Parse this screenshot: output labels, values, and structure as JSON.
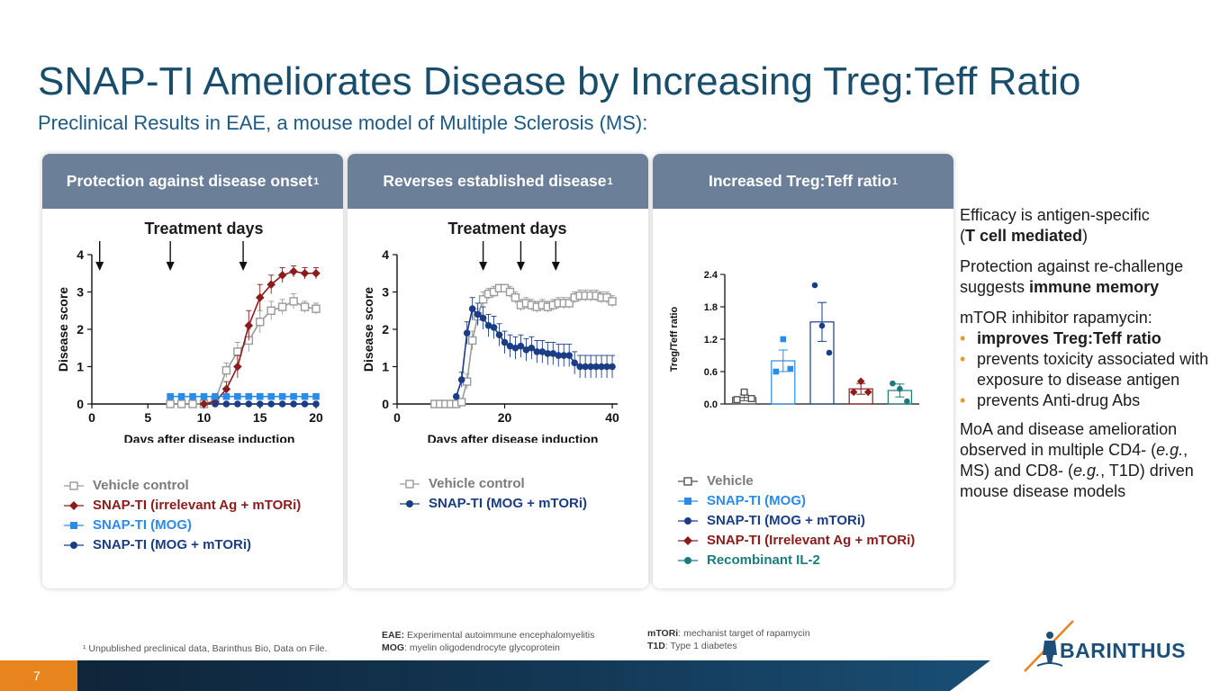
{
  "slide": {
    "title": "SNAP-TI Ameliorates Disease by Increasing Treg:Teff Ratio",
    "subtitle": "Preclinical Results in EAE, a mouse model of Multiple Sclerosis (MS):",
    "page_number": "7"
  },
  "colors": {
    "title": "#184d6b",
    "header": "#6c7f99",
    "vehicle": "#9a9a9a",
    "irrelevant": "#8b1c1c",
    "mog": "#2b8be8",
    "mog_mtori": "#1a3d85",
    "il2": "#1c7c7c",
    "accent": "#e8841e"
  },
  "panels": {
    "onset": {
      "header": "Protection against disease onset",
      "sup": "1"
    },
    "reverses": {
      "header": "Reverses established disease",
      "sup": "1"
    },
    "ratio": {
      "header": "Increased Treg:Teff ratio",
      "sup": "1"
    }
  },
  "legends": {
    "onset": [
      {
        "label": "Vehicle control",
        "marker": "square-open",
        "color": "#9a9a9a"
      },
      {
        "label": "SNAP-TI (irrelevant Ag + mTORi)",
        "marker": "diamond",
        "color": "#8b1c1c"
      },
      {
        "label": "SNAP-TI (MOG)",
        "marker": "square",
        "color": "#2b8be8"
      },
      {
        "label": "SNAP-TI (MOG + mTORi)",
        "marker": "circle",
        "color": "#1a3d85"
      }
    ],
    "reverses": [
      {
        "label": "Vehicle control",
        "marker": "square-open",
        "color": "#9a9a9a"
      },
      {
        "label": "SNAP-TI (MOG + mTORi)",
        "marker": "circle",
        "color": "#1a3d85"
      }
    ],
    "ratio": [
      {
        "label": "Vehicle",
        "marker": "square-open",
        "color": "#555555"
      },
      {
        "label": "SNAP-TI (MOG)",
        "marker": "square",
        "color": "#2b8be8"
      },
      {
        "label": "SNAP-TI (MOG + mTORi)",
        "marker": "circle",
        "color": "#1a3d85"
      },
      {
        "label": "SNAP-TI (Irrelevant Ag + mTORi)",
        "marker": "diamond",
        "color": "#8b1c1c"
      },
      {
        "label": "Recombinant IL-2",
        "marker": "circle",
        "color": "#1c7c7c"
      }
    ]
  },
  "side_text": {
    "p1a": "Efficacy is antigen-specific",
    "p1b_open": "(",
    "p1b_bold": "T cell mediated",
    "p1b_close": ")",
    "p2": "Protection against re-challenge suggests ",
    "p2_bold": "immune memory",
    "p3": "mTOR inhibitor rapamycin:",
    "bullets": [
      "improves Treg:Teff ratio",
      "prevents toxicity associated with exposure to disease antigen",
      "prevents Anti-drug Abs"
    ],
    "p4a": "MoA and disease amelioration observed in multiple CD4- (",
    "p4b": "e.g.",
    "p4c": ", MS) and CD8- (",
    "p4d": "e.g.",
    "p4e": ", T1D) driven mouse disease models"
  },
  "footnotes": {
    "ref": "¹ Unpublished preclinical data, Barinthus Bio, Data on File.",
    "eae_label": "EAE:",
    "eae_text": " Experimental autoimmune encephalomyelitis",
    "mog_label": "MOG",
    "mog_text": ": myelin oligodendrocyte glycoprotein",
    "mtori_label": "mTORi",
    "mtori_text": ": mechanist target of rapamycin",
    "t1d_label": "T1D",
    "t1d_text": ": Type 1 diabetes"
  },
  "logo": {
    "text": "BARINTHUS"
  },
  "chart_data": [
    {
      "type": "line",
      "title": "Treatment days",
      "xlabel": "Days after disease induction",
      "ylabel": "Disease score",
      "xlim": [
        0,
        20
      ],
      "ylim": [
        0,
        4
      ],
      "xticks": [
        0,
        5,
        10,
        15,
        20
      ],
      "yticks": [
        0,
        1,
        2,
        3,
        4
      ],
      "treatment_days": [
        0.7,
        7,
        13.5
      ],
      "series": [
        {
          "name": "Vehicle control",
          "color": "#9a9a9a",
          "marker": "square-open",
          "x": [
            7,
            8,
            9,
            10,
            11,
            12,
            13,
            14,
            15,
            16,
            17,
            18,
            19,
            20
          ],
          "y": [
            0,
            0,
            0,
            0,
            0.1,
            0.9,
            1.4,
            1.7,
            2.2,
            2.5,
            2.6,
            2.75,
            2.6,
            2.55
          ],
          "err": [
            0,
            0,
            0,
            0,
            0.1,
            0.2,
            0.25,
            0.3,
            0.3,
            0.25,
            0.2,
            0.2,
            0.15,
            0.15
          ]
        },
        {
          "name": "SNAP-TI (irrelevant Ag + mTORi)",
          "color": "#8b1c1c",
          "marker": "diamond",
          "x": [
            10,
            11,
            12,
            13,
            14,
            15,
            16,
            17,
            18,
            19,
            20
          ],
          "y": [
            0,
            0.05,
            0.4,
            1.0,
            2.1,
            2.85,
            3.2,
            3.45,
            3.55,
            3.5,
            3.5
          ],
          "err": [
            0,
            0,
            0.2,
            0.3,
            0.4,
            0.35,
            0.25,
            0.2,
            0.15,
            0.15,
            0.15
          ]
        },
        {
          "name": "SNAP-TI (MOG)",
          "color": "#2b8be8",
          "marker": "square",
          "x": [
            7,
            8,
            9,
            10,
            11,
            12,
            13,
            14,
            15,
            16,
            17,
            18,
            19,
            20
          ],
          "y": [
            0.2,
            0.2,
            0.2,
            0.2,
            0.2,
            0.2,
            0.2,
            0.2,
            0.2,
            0.2,
            0.2,
            0.2,
            0.2,
            0.2
          ],
          "err": []
        },
        {
          "name": "SNAP-TI (MOG + mTORi)",
          "color": "#1a3d85",
          "marker": "circle",
          "x": [
            11,
            12,
            13,
            14,
            15,
            16,
            17,
            18,
            19,
            20
          ],
          "y": [
            0,
            0,
            0,
            0,
            0,
            0,
            0,
            0,
            0,
            0
          ],
          "err": []
        }
      ]
    },
    {
      "type": "line",
      "title": "Treatment days",
      "xlabel": "Days after disease induction",
      "ylabel": "Disease score",
      "xlim": [
        0,
        41
      ],
      "ylim": [
        0,
        4
      ],
      "xticks": [
        0,
        20,
        40
      ],
      "yticks": [
        0,
        1,
        2,
        3,
        4
      ],
      "treatment_days": [
        16,
        23,
        29.5
      ],
      "series": [
        {
          "name": "Vehicle control",
          "color": "#9a9a9a",
          "marker": "square-open",
          "x": [
            7,
            8,
            9,
            10,
            11,
            12,
            13,
            14,
            15,
            16,
            17,
            18,
            19,
            20,
            21,
            22,
            23,
            24,
            25,
            26,
            27,
            28,
            29,
            30,
            31,
            32,
            33,
            34,
            35,
            36,
            37,
            38,
            39,
            40
          ],
          "y": [
            0,
            0,
            0,
            0,
            0,
            0.05,
            0.6,
            1.7,
            2.35,
            2.8,
            2.95,
            3.0,
            3.1,
            3.1,
            3.0,
            2.85,
            2.65,
            2.7,
            2.65,
            2.6,
            2.65,
            2.6,
            2.65,
            2.7,
            2.7,
            2.7,
            2.85,
            2.9,
            2.9,
            2.9,
            2.9,
            2.85,
            2.85,
            2.75
          ],
          "err": [
            0,
            0,
            0,
            0,
            0,
            0,
            0.2,
            0.25,
            0.2,
            0.2,
            0.15,
            0.15,
            0.1,
            0.1,
            0.15,
            0.15,
            0.15,
            0.15,
            0.15,
            0.15,
            0.15,
            0.15,
            0.15,
            0.15,
            0.15,
            0.15,
            0.15,
            0.15,
            0.15,
            0.15,
            0.15,
            0.15,
            0.15,
            0.15
          ]
        },
        {
          "name": "SNAP-TI (MOG + mTORi)",
          "color": "#1a3d85",
          "marker": "circle",
          "x": [
            11,
            12,
            13,
            14,
            15,
            16,
            17,
            18,
            19,
            20,
            21,
            22,
            23,
            24,
            25,
            26,
            27,
            28,
            29,
            30,
            31,
            32,
            33,
            34,
            35,
            36,
            37,
            38,
            39,
            40
          ],
          "y": [
            0.2,
            0.65,
            1.9,
            2.55,
            2.4,
            2.3,
            2.1,
            2.05,
            1.85,
            1.65,
            1.55,
            1.5,
            1.55,
            1.45,
            1.5,
            1.4,
            1.4,
            1.35,
            1.35,
            1.3,
            1.3,
            1.3,
            1.1,
            1.0,
            1.0,
            1.0,
            1.0,
            1.0,
            1.0,
            1.0
          ],
          "err": [
            0,
            0.2,
            0.3,
            0.3,
            0.3,
            0.3,
            0.3,
            0.3,
            0.3,
            0.3,
            0.3,
            0.3,
            0.3,
            0.3,
            0.3,
            0.3,
            0.3,
            0.3,
            0.3,
            0.3,
            0.3,
            0.3,
            0.3,
            0.3,
            0.3,
            0.3,
            0.3,
            0.3,
            0.3,
            0.3
          ]
        }
      ]
    },
    {
      "type": "bar",
      "ylabel": "Treg/Teff ratio",
      "ylim": [
        0,
        2.4
      ],
      "yticks": [
        "0.0",
        "0.6",
        "1.2",
        "1.8",
        "2.4"
      ],
      "categories": [
        "Vehicle",
        "SNAP-TI (MOG)",
        "SNAP-TI (MOG + mTORi)",
        "SNAP-TI (Irrelevant Ag + mTORi)",
        "Recombinant IL-2"
      ],
      "values": [
        0.12,
        0.8,
        1.52,
        0.28,
        0.25
      ],
      "errors": [
        0.06,
        0.2,
        0.36,
        0.1,
        0.12
      ],
      "points": [
        [
          0.08,
          0.22,
          0.1
        ],
        [
          0.6,
          1.2,
          0.65
        ],
        [
          2.2,
          1.45,
          0.95
        ],
        [
          0.22,
          0.42,
          0.22
        ],
        [
          0.38,
          0.28,
          0.05
        ]
      ],
      "colors": [
        "#555555",
        "#2b8be8",
        "#1a3d85",
        "#8b1c1c",
        "#1c7c7c"
      ],
      "markers": [
        "square-open",
        "square",
        "circle",
        "diamond",
        "circle"
      ]
    }
  ]
}
